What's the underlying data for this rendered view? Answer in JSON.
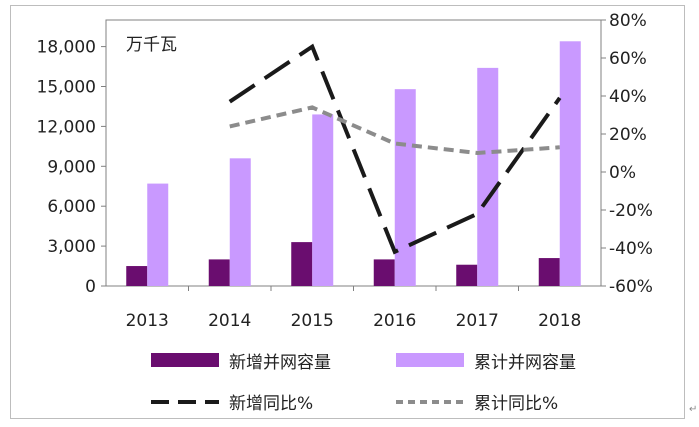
{
  "chart_data": {
    "type": "bar",
    "unit_label": "万千瓦",
    "categories": [
      "2013",
      "2014",
      "2015",
      "2016",
      "2017",
      "2018"
    ],
    "series": [
      {
        "name": "新增并网容量",
        "kind": "bar",
        "axis": "left",
        "color": "#6a0d6f",
        "values": [
          1500,
          2000,
          3300,
          2000,
          1600,
          2100
        ]
      },
      {
        "name": "累计并网容量",
        "kind": "bar",
        "axis": "left",
        "color": "#c999ff",
        "values": [
          7700,
          9600,
          12900,
          14800,
          16400,
          18400
        ]
      },
      {
        "name": "新增同比%",
        "kind": "line",
        "axis": "right",
        "color": "#1a1a1a",
        "dash": "long",
        "values": [
          null,
          37,
          66,
          -42,
          -22,
          39
        ]
      },
      {
        "name": "累计同比%",
        "kind": "line",
        "axis": "right",
        "color": "#8c8c8c",
        "dash": "short",
        "values": [
          null,
          24,
          34,
          15,
          10,
          13
        ]
      }
    ],
    "left_axis": {
      "ylim": [
        0,
        20000
      ],
      "ticks": [
        "0",
        "3,000",
        "6,000",
        "9,000",
        "12,000",
        "15,000",
        "18,000"
      ]
    },
    "right_axis": {
      "ylim": [
        -60,
        80
      ],
      "ticks": [
        "-60%",
        "-40%",
        "-20%",
        "0%",
        "20%",
        "40%",
        "60%",
        "80%"
      ]
    },
    "legend_position": "bottom"
  },
  "trailing_mark": "↵"
}
